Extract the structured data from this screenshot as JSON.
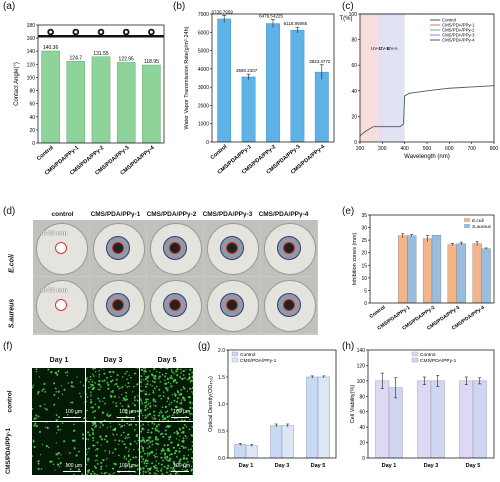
{
  "panel_labels": [
    "(a)",
    "(b)",
    "(c)",
    "(d)",
    "(e)",
    "(f)",
    "(g)",
    "(h)"
  ],
  "colors": {
    "control": "#8ed49a",
    "ppy": "#5fb2e6",
    "ecoli": "#f2b489",
    "saureus": "#98bedf",
    "g_control": "#c8d9f4",
    "g_ppy": "#dde6f5",
    "h_control": "#dfd8f2",
    "h_ppy": "#cfd6f0",
    "lineA": "#222222",
    "curve_c": "#555555"
  },
  "photo_labels": {
    "d_cols": [
      "control",
      "CMS/PDA/PPy-1",
      "CMS/PDA/PPy-2",
      "CMS/PDA/PPy-3",
      "CMS/PDA/PPy-4"
    ],
    "d_rows": [
      "E.coli",
      "S.aureus"
    ],
    "d_annot": "d=10 mm",
    "f_cols": [
      "Day 1",
      "Day 3",
      "Day 5"
    ],
    "f_rows": [
      "control",
      "CMS/PDA/PPy-1"
    ],
    "f_scale": "100 µm"
  },
  "chart_data": [
    {
      "id": "a",
      "type": "bar",
      "categories": [
        "Control",
        "CMS/PDA/PPy-1",
        "CMS/PDA/PPy-2",
        "CMS/PDA/PPy-3",
        "CMS/PDA/PPy-4"
      ],
      "values": [
        140.36,
        124.7,
        131.55,
        122.95,
        118.95
      ],
      "data_labels": [
        "140.36",
        "124.7",
        "131.55",
        "122.95",
        "118.95"
      ],
      "ylabel": "Contact Angle(°)",
      "ylim": [
        0,
        180
      ],
      "yticks": [
        0,
        20,
        40,
        60,
        80,
        100,
        120,
        140,
        160,
        180
      ]
    },
    {
      "id": "b",
      "type": "bar",
      "categories": [
        "Control",
        "CMS/PDA/PPy-1",
        "CMS/PDA/PPy-2",
        "CMS/PDA/PPy-3",
        "CMS/PDA/PPy-4"
      ],
      "values": [
        6730.7959,
        3560.2307,
        6479.54225,
        6118.95065,
        3823.4772
      ],
      "errors": [
        200,
        150,
        220,
        160,
        400
      ],
      "data_labels": [
        "6730.7959",
        "3560.2307",
        "6479.54225",
        "6118.95065",
        "3823.4772"
      ],
      "ylabel": "Water Vapor Transmission Rate(g/m²·24h)",
      "ylim": [
        0,
        7000
      ],
      "yticks": [
        0,
        1000,
        2000,
        3000,
        4000,
        5000,
        6000,
        7000
      ]
    },
    {
      "id": "c",
      "type": "line",
      "xlabel": "Wavelength (nm)",
      "ylabel": "T(%)",
      "xlim": [
        200,
        800
      ],
      "ylim": [
        0,
        100
      ],
      "xticks": [
        200,
        300,
        400,
        500,
        600,
        700,
        800
      ],
      "yticks": [
        0,
        20,
        40,
        60,
        80,
        100
      ],
      "bands": [
        "UV-C",
        "UV-B",
        "UV-A"
      ],
      "series": [
        {
          "name": "Control",
          "x": [
            200,
            800
          ],
          "y": [
            100,
            100
          ]
        },
        {
          "name": "CMS/PDA/PPy-1",
          "x": [
            200,
            800
          ],
          "y": [
            100,
            100
          ]
        },
        {
          "name": "CMS/PDA/PPy-2",
          "x": [
            200,
            800
          ],
          "y": [
            100,
            100
          ]
        },
        {
          "name": "CMS/PDA/PPy-3",
          "x": [
            200,
            800
          ],
          "y": [
            100,
            100
          ]
        },
        {
          "name": "CMS/PDA/PPy-4",
          "x": [
            200,
            230,
            260,
            300,
            340,
            380,
            395,
            400,
            420,
            500,
            600,
            700,
            800
          ],
          "y": [
            5,
            9,
            12,
            12,
            12,
            12,
            14,
            36,
            38,
            40,
            42,
            43,
            44
          ]
        }
      ]
    },
    {
      "id": "e",
      "type": "bar",
      "categories": [
        "Control",
        "CMS/PDA/PPy-1",
        "CMS/PDA/PPy-2",
        "CMS/PDA/PPy-3",
        "CMS/PDA/PPy-4"
      ],
      "series": [
        {
          "name": "E.coli",
          "values": [
            0,
            26.8,
            25.6,
            23.2,
            23.6
          ],
          "errors": [
            0,
            0.8,
            1.2,
            0.5,
            0.8
          ]
        },
        {
          "name": "S.aureus",
          "values": [
            0,
            26.8,
            27.0,
            23.6,
            21.6
          ],
          "errors": [
            0,
            0.4,
            0,
            0.6,
            0.3
          ]
        }
      ],
      "ylabel": "Inhibition zones (mm)",
      "ylim": [
        0,
        35
      ],
      "yticks": [
        0,
        5,
        10,
        15,
        20,
        25,
        30,
        35
      ]
    },
    {
      "id": "g",
      "type": "bar",
      "categories": [
        "Day 1",
        "Day 3",
        "Day 5"
      ],
      "series": [
        {
          "name": "Control",
          "values": [
            0.25,
            0.6,
            1.5
          ],
          "errors": [
            0.02,
            0.03,
            0.02
          ]
        },
        {
          "name": "CMS/PDA/PPy-1",
          "values": [
            0.23,
            0.6,
            1.5
          ],
          "errors": [
            0.02,
            0.03,
            0.02
          ]
        }
      ],
      "ylabel": "Optical Density(OD₄₅₀)",
      "ylim": [
        0,
        2.0
      ],
      "yticks": [
        0.0,
        0.5,
        1.0,
        1.5,
        2.0
      ]
    },
    {
      "id": "h",
      "type": "bar",
      "categories": [
        "Day 1",
        "Day 3",
        "Day 5"
      ],
      "series": [
        {
          "name": "Control",
          "values": [
            100,
            100,
            100
          ],
          "errors": [
            10,
            5,
            5
          ]
        },
        {
          "name": "CMS/PDA/PPy-1",
          "values": [
            91,
            100,
            100
          ],
          "errors": [
            13,
            7,
            4
          ]
        }
      ],
      "ylabel": "Cell Viability(%)",
      "ylim": [
        0,
        140
      ],
      "yticks": [
        0,
        20,
        40,
        60,
        80,
        100,
        120,
        140
      ]
    }
  ]
}
